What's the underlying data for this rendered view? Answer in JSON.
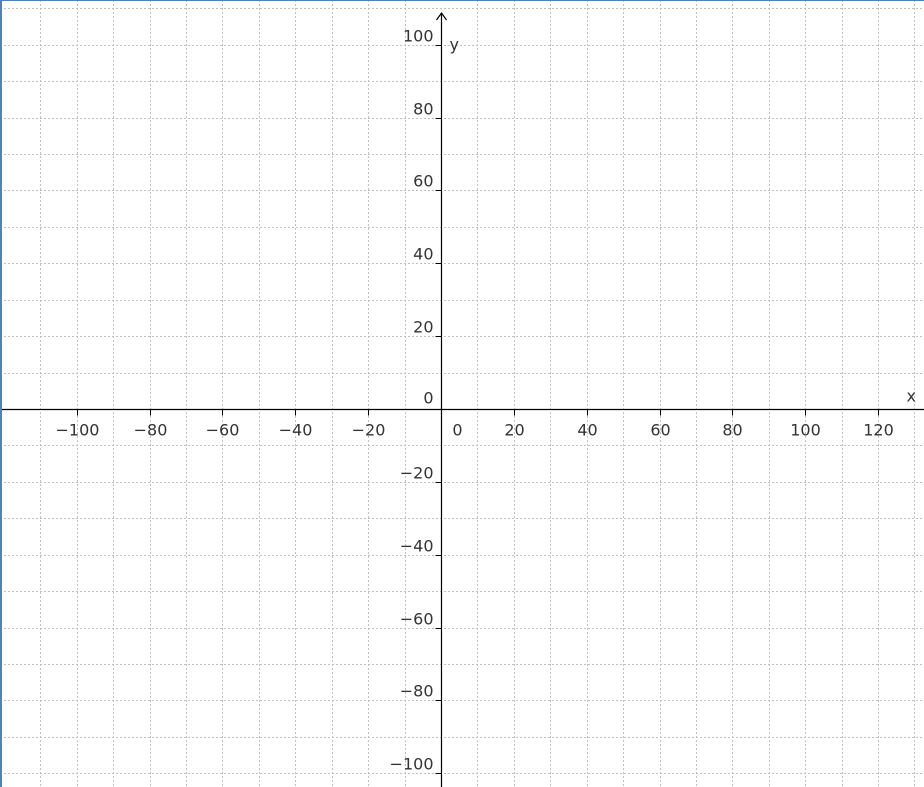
{
  "colors": {
    "frame": "#4f81bd",
    "axis": "#000000",
    "grid": "#c0c0c0",
    "label": "#333333",
    "background": "#ffffff"
  },
  "chart_data": {
    "type": "scatter",
    "title": "",
    "xlabel": "x",
    "ylabel": "y",
    "xlim": [
      -118,
      131
    ],
    "ylim": [
      -103,
      110
    ],
    "x_ticks": [
      -100,
      -80,
      -60,
      -40,
      -20,
      0,
      20,
      40,
      60,
      80,
      100,
      120
    ],
    "x_tick_labels": [
      "−100",
      "−80",
      "−60",
      "−40",
      "−20",
      "0",
      "20",
      "40",
      "60",
      "80",
      "100",
      "120"
    ],
    "y_ticks": [
      -100,
      -80,
      -60,
      -40,
      -20,
      0,
      20,
      40,
      60,
      80,
      100
    ],
    "y_tick_labels": [
      "−100",
      "−80",
      "−60",
      "−40",
      "−20",
      "0",
      "20",
      "40",
      "60",
      "80",
      "100"
    ],
    "grid": true,
    "grid_step": 10,
    "series": []
  }
}
